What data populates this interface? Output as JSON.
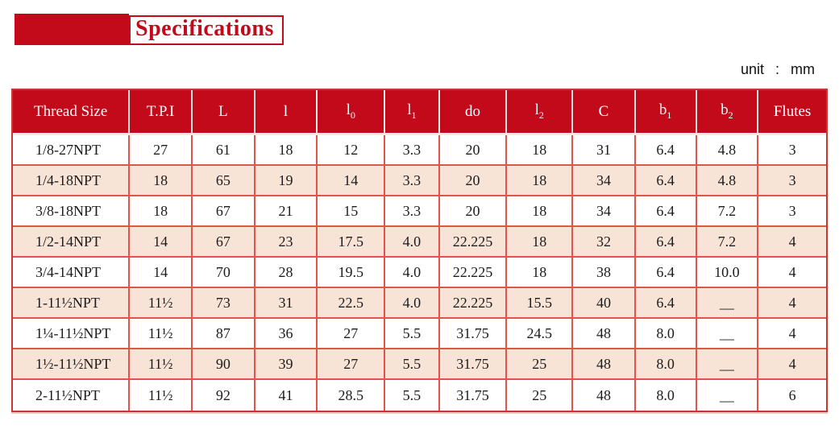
{
  "banner": {
    "title": "Specifications"
  },
  "unit_note": {
    "label": "unit",
    "separator": ":",
    "value": "mm"
  },
  "colors": {
    "header_red": "#c20a1a",
    "border_red": "#e0544a",
    "stripe_peach": "#f8e3d7",
    "title_red": "#c20a1a"
  },
  "table": {
    "columns": [
      {
        "label": "Thread Size",
        "sub": ""
      },
      {
        "label": "T.P.I",
        "sub": ""
      },
      {
        "label": "L",
        "sub": ""
      },
      {
        "label": "l",
        "sub": ""
      },
      {
        "label": "l",
        "sub": "0"
      },
      {
        "label": "l",
        "sub": "1"
      },
      {
        "label": "do",
        "sub": ""
      },
      {
        "label": "l",
        "sub": "2"
      },
      {
        "label": "C",
        "sub": ""
      },
      {
        "label": "b",
        "sub": "1"
      },
      {
        "label": "b",
        "sub": "2"
      },
      {
        "label": "Flutes",
        "sub": ""
      }
    ],
    "rows": [
      [
        "1/8-27NPT",
        "27",
        "61",
        "18",
        "12",
        "3.3",
        "20",
        "18",
        "31",
        "6.4",
        "4.8",
        "3"
      ],
      [
        "1/4-18NPT",
        "18",
        "65",
        "19",
        "14",
        "3.3",
        "20",
        "18",
        "34",
        "6.4",
        "4.8",
        "3"
      ],
      [
        "3/8-18NPT",
        "18",
        "67",
        "21",
        "15",
        "3.3",
        "20",
        "18",
        "34",
        "6.4",
        "7.2",
        "3"
      ],
      [
        "1/2-14NPT",
        "14",
        "67",
        "23",
        "17.5",
        "4.0",
        "22.225",
        "18",
        "32",
        "6.4",
        "7.2",
        "4"
      ],
      [
        "3/4-14NPT",
        "14",
        "70",
        "28",
        "19.5",
        "4.0",
        "22.225",
        "18",
        "38",
        "6.4",
        "10.0",
        "4"
      ],
      [
        "1-11½NPT",
        "11½",
        "73",
        "31",
        "22.5",
        "4.0",
        "22.225",
        "15.5",
        "40",
        "6.4",
        "__",
        "4"
      ],
      [
        "1¼-11½NPT",
        "11½",
        "87",
        "36",
        "27",
        "5.5",
        "31.75",
        "24.5",
        "48",
        "8.0",
        "__",
        "4"
      ],
      [
        "1½-11½NPT",
        "11½",
        "90",
        "39",
        "27",
        "5.5",
        "31.75",
        "25",
        "48",
        "8.0",
        "__",
        "4"
      ],
      [
        "2-11½NPT",
        "11½",
        "92",
        "41",
        "28.5",
        "5.5",
        "31.75",
        "25",
        "48",
        "8.0",
        "__",
        "6"
      ]
    ]
  }
}
